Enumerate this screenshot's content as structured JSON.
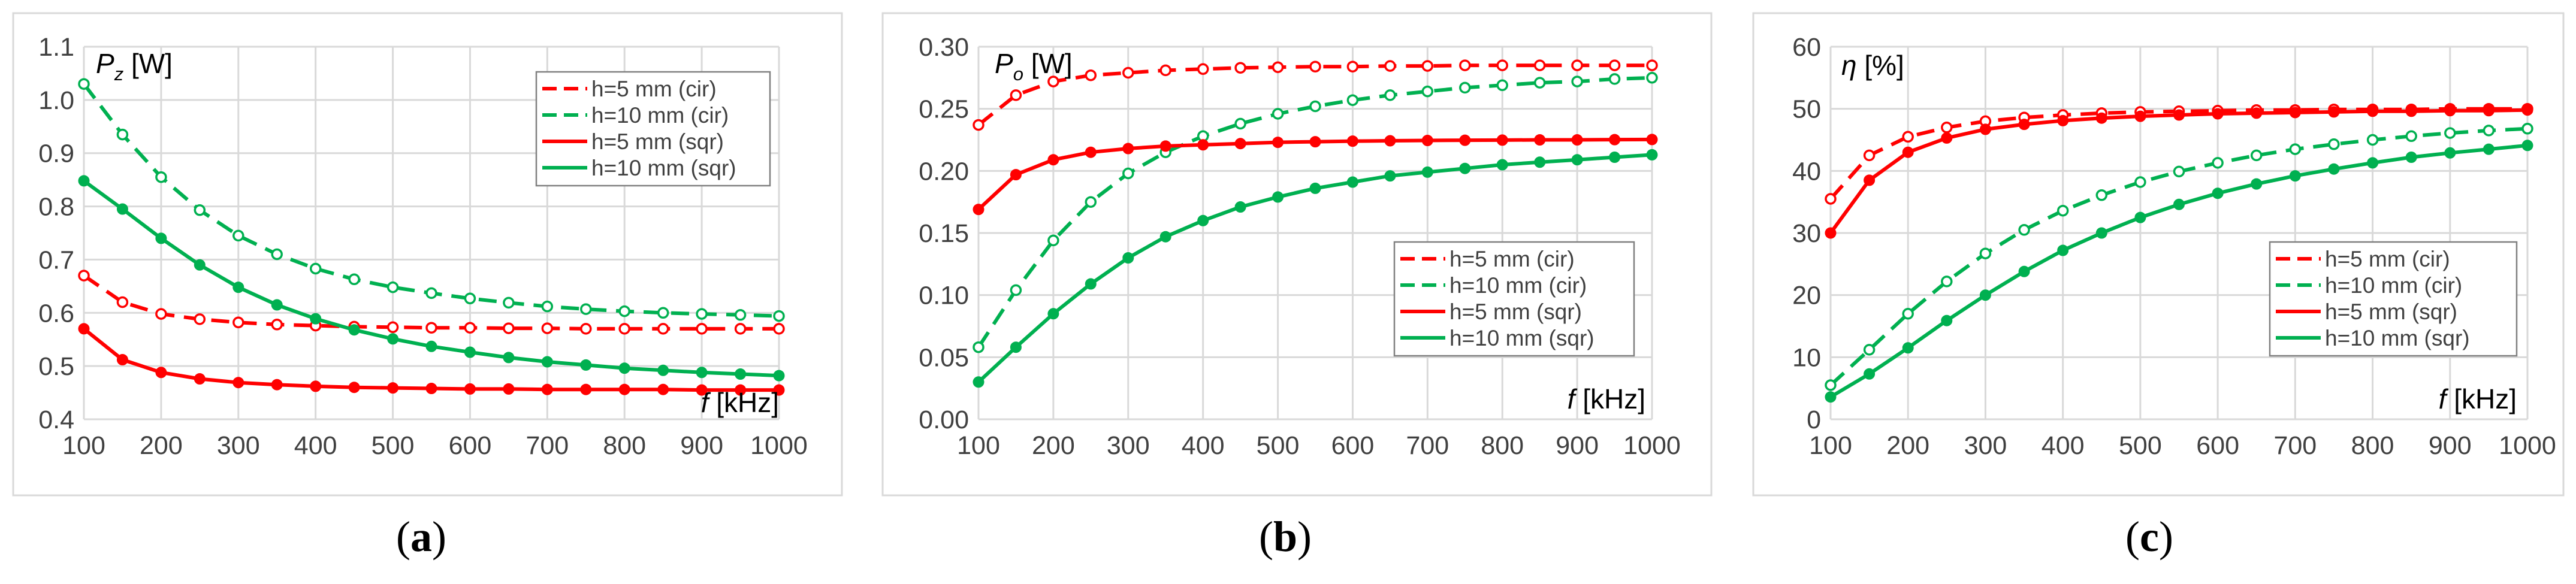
{
  "colors": {
    "red": "#ff0000",
    "green": "#00b050",
    "grid": "#d9d9d9",
    "axis_text": "#404040"
  },
  "chart_data": [
    {
      "type": "line",
      "caption": "a",
      "ylabel_symbol": "P",
      "ylabel_sub": "z",
      "ylabel_unit": "[W]",
      "xlabel_symbol": "f",
      "xlabel_unit": "[kHz]",
      "x": [
        100,
        150,
        200,
        250,
        300,
        350,
        400,
        450,
        500,
        550,
        600,
        650,
        700,
        750,
        800,
        850,
        900,
        950,
        1000
      ],
      "xticks": [
        "100",
        "200",
        "300",
        "400",
        "500",
        "600",
        "700",
        "800",
        "900",
        "1000"
      ],
      "ylim": [
        0.4,
        1.1
      ],
      "yticks": [
        "0.4",
        "0.5",
        "0.6",
        "0.7",
        "0.8",
        "0.9",
        "1.0",
        "1.1"
      ],
      "legend_position": "top-right",
      "series": [
        {
          "name": "h=5 mm (cir)",
          "color": "red",
          "style": "dashed-open",
          "values": [
            0.67,
            0.62,
            0.598,
            0.588,
            0.582,
            0.578,
            0.576,
            0.574,
            0.573,
            0.572,
            0.572,
            0.571,
            0.571,
            0.57,
            0.57,
            0.57,
            0.57,
            0.57,
            0.57
          ]
        },
        {
          "name": "h=10 mm (cir)",
          "color": "green",
          "style": "dashed-open",
          "values": [
            1.03,
            0.935,
            0.855,
            0.793,
            0.745,
            0.71,
            0.683,
            0.663,
            0.648,
            0.637,
            0.627,
            0.619,
            0.612,
            0.607,
            0.603,
            0.6,
            0.598,
            0.596,
            0.594
          ]
        },
        {
          "name": "h=5 mm (sqr)",
          "color": "red",
          "style": "solid-filled",
          "values": [
            0.57,
            0.512,
            0.488,
            0.476,
            0.469,
            0.465,
            0.462,
            0.46,
            0.459,
            0.458,
            0.457,
            0.457,
            0.456,
            0.456,
            0.456,
            0.456,
            0.455,
            0.455,
            0.455
          ]
        },
        {
          "name": "h=10 mm (sqr)",
          "color": "green",
          "style": "solid-filled",
          "values": [
            0.848,
            0.795,
            0.74,
            0.69,
            0.648,
            0.615,
            0.589,
            0.568,
            0.551,
            0.537,
            0.526,
            0.516,
            0.508,
            0.502,
            0.496,
            0.492,
            0.488,
            0.485,
            0.482
          ]
        }
      ]
    },
    {
      "type": "line",
      "caption": "b",
      "ylabel_symbol": "P",
      "ylabel_sub": "o",
      "ylabel_unit": "[W]",
      "xlabel_symbol": "f",
      "xlabel_unit": "[kHz]",
      "x": [
        100,
        150,
        200,
        250,
        300,
        350,
        400,
        450,
        500,
        550,
        600,
        650,
        700,
        750,
        800,
        850,
        900,
        950,
        1000
      ],
      "xticks": [
        "100",
        "200",
        "300",
        "400",
        "500",
        "600",
        "700",
        "800",
        "900",
        "1000"
      ],
      "ylim": [
        0.0,
        0.3
      ],
      "yticks": [
        "0.00",
        "0.05",
        "0.10",
        "0.15",
        "0.20",
        "0.25",
        "0.30"
      ],
      "legend_position": "center-right",
      "series": [
        {
          "name": "h=5 mm (cir)",
          "color": "red",
          "style": "dashed-open",
          "values": [
            0.237,
            0.261,
            0.272,
            0.277,
            0.279,
            0.281,
            0.282,
            0.283,
            0.2835,
            0.284,
            0.284,
            0.2845,
            0.2845,
            0.285,
            0.285,
            0.285,
            0.285,
            0.285,
            0.285
          ]
        },
        {
          "name": "h=10 mm (cir)",
          "color": "green",
          "style": "dashed-open",
          "values": [
            0.058,
            0.104,
            0.144,
            0.175,
            0.198,
            0.215,
            0.228,
            0.238,
            0.246,
            0.252,
            0.257,
            0.261,
            0.264,
            0.267,
            0.269,
            0.271,
            0.272,
            0.274,
            0.275
          ]
        },
        {
          "name": "h=5 mm (sqr)",
          "color": "red",
          "style": "solid-filled",
          "values": [
            0.169,
            0.197,
            0.209,
            0.215,
            0.218,
            0.22,
            0.221,
            0.222,
            0.223,
            0.2235,
            0.224,
            0.2243,
            0.2245,
            0.2247,
            0.2248,
            0.225,
            0.225,
            0.2252,
            0.2253
          ]
        },
        {
          "name": "h=10 mm (sqr)",
          "color": "green",
          "style": "solid-filled",
          "values": [
            0.03,
            0.058,
            0.085,
            0.109,
            0.13,
            0.147,
            0.16,
            0.171,
            0.179,
            0.186,
            0.191,
            0.196,
            0.199,
            0.202,
            0.205,
            0.207,
            0.209,
            0.211,
            0.213
          ]
        }
      ]
    },
    {
      "type": "line",
      "caption": "c",
      "ylabel_symbol": "η",
      "ylabel_sub": "",
      "ylabel_unit": "[%]",
      "xlabel_symbol": "f",
      "xlabel_unit": "[kHz]",
      "x": [
        100,
        150,
        200,
        250,
        300,
        350,
        400,
        450,
        500,
        550,
        600,
        650,
        700,
        750,
        800,
        850,
        900,
        950,
        1000
      ],
      "xticks": [
        "100",
        "200",
        "300",
        "400",
        "500",
        "600",
        "700",
        "800",
        "900",
        "1000"
      ],
      "ylim": [
        0,
        60
      ],
      "yticks": [
        "0",
        "10",
        "20",
        "30",
        "40",
        "50",
        "60"
      ],
      "legend_position": "center-right",
      "series": [
        {
          "name": "h=5 mm (cir)",
          "color": "red",
          "style": "dashed-open",
          "values": [
            35.5,
            42.5,
            45.5,
            47.0,
            48.0,
            48.6,
            49.0,
            49.3,
            49.5,
            49.6,
            49.7,
            49.8,
            49.8,
            49.9,
            49.9,
            49.9,
            50.0,
            50.0,
            50.0
          ]
        },
        {
          "name": "h=10 mm (cir)",
          "color": "green",
          "style": "dashed-open",
          "values": [
            5.5,
            11.2,
            17.0,
            22.2,
            26.7,
            30.5,
            33.6,
            36.1,
            38.2,
            39.9,
            41.3,
            42.5,
            43.5,
            44.3,
            45.0,
            45.6,
            46.1,
            46.5,
            46.8
          ]
        },
        {
          "name": "h=5 mm (sqr)",
          "color": "red",
          "style": "solid-filled",
          "values": [
            30.0,
            38.5,
            43.0,
            45.3,
            46.7,
            47.5,
            48.1,
            48.5,
            48.8,
            49.0,
            49.2,
            49.3,
            49.4,
            49.5,
            49.6,
            49.6,
            49.7,
            49.7,
            49.8
          ]
        },
        {
          "name": "h=10 mm (sqr)",
          "color": "green",
          "style": "solid-filled",
          "values": [
            3.6,
            7.3,
            11.5,
            15.9,
            20.0,
            23.8,
            27.2,
            30.0,
            32.5,
            34.6,
            36.4,
            37.9,
            39.2,
            40.3,
            41.3,
            42.2,
            42.9,
            43.5,
            44.1
          ]
        }
      ]
    }
  ]
}
